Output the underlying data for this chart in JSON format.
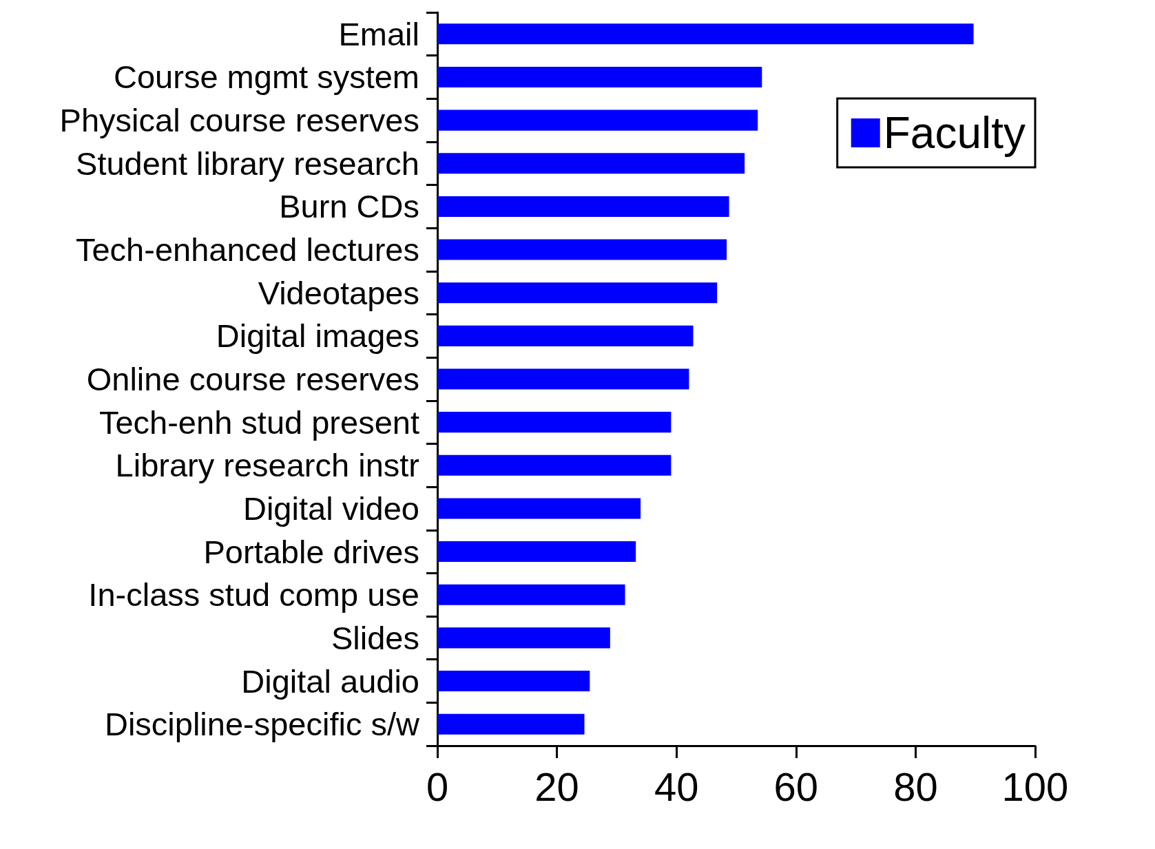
{
  "chart_data": {
    "type": "bar",
    "orientation": "horizontal",
    "categories": [
      "Email",
      "Course mgmt system",
      "Physical course reserves",
      "Student library research",
      "Burn CDs",
      "Tech-enhanced lectures",
      "Videotapes",
      "Digital images",
      "Online course reserves",
      "Tech-enh stud present",
      "Library research instr",
      "Digital video",
      "Portable drives",
      "In-class stud comp use",
      "Slides",
      "Digital audio",
      "Discipline-specific s/w"
    ],
    "series": [
      {
        "name": "Faculty",
        "color": "#0000ff",
        "values": [
          89.7,
          54.3,
          53.6,
          51.4,
          48.8,
          48.4,
          46.8,
          42.8,
          42.1,
          39.1,
          39.1,
          34.0,
          33.2,
          31.4,
          28.9,
          25.5,
          24.6
        ]
      }
    ],
    "xlim": [
      0,
      100
    ],
    "xticks": [
      0,
      20,
      40,
      60,
      80,
      100
    ],
    "grid": false,
    "legend": "top right"
  }
}
